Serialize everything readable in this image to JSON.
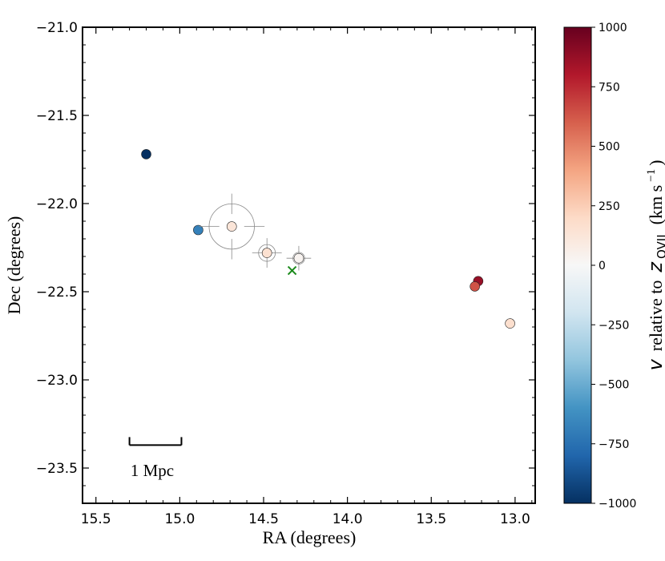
{
  "chart_data": {
    "type": "scatter",
    "xlabel": "RA (degrees)",
    "ylabel": "Dec (degrees)",
    "xlim": [
      15.58,
      12.88
    ],
    "ylim": [
      -23.7,
      -21.0
    ],
    "x_inverted": true,
    "grid": false,
    "x_ticks": [
      "15.5",
      "15.0",
      "14.5",
      "14.0",
      "13.5",
      "13.0"
    ],
    "x_tick_values": [
      15.5,
      15.0,
      14.5,
      14.0,
      13.5,
      13.0
    ],
    "y_ticks": [
      "−21.0",
      "−21.5",
      "−22.0",
      "−22.5",
      "−23.0",
      "−23.5"
    ],
    "y_tick_values": [
      -21.0,
      -21.5,
      -22.0,
      -22.5,
      -23.0,
      -23.5
    ],
    "points": [
      {
        "ra": 15.2,
        "dec": -21.72,
        "v": -1000
      },
      {
        "ra": 14.89,
        "dec": -22.15,
        "v": -680
      },
      {
        "ra": 14.69,
        "dec": -22.13,
        "v": 130,
        "circle_deg": 0.135
      },
      {
        "ra": 14.48,
        "dec": -22.28,
        "v": 160,
        "circle_deg": 0.05
      },
      {
        "ra": 14.29,
        "dec": -22.31,
        "v": 30,
        "circle_deg": 0.035
      },
      {
        "ra": 13.22,
        "dec": -22.44,
        "v": 870
      },
      {
        "ra": 13.24,
        "dec": -22.47,
        "v": 640
      },
      {
        "ra": 13.03,
        "dec": -22.68,
        "v": 170
      }
    ],
    "marker_x": {
      "ra": 14.33,
      "dec": -22.38,
      "color": "#1a8a1a"
    },
    "scale_bar": {
      "label": "1 Mpc",
      "ra_start": 15.3,
      "ra_end": 14.99,
      "dec": -23.37
    },
    "colorbar": {
      "label_v": "v",
      "label_rest": "relative to",
      "label_z": "z",
      "label_sub": "OVII",
      "label_units": "(km s",
      "label_exp": "−1",
      "label_close": ")",
      "min": -1000,
      "max": 1000,
      "ticks": [
        "−1000",
        "−750",
        "−500",
        "−250",
        "0",
        "250",
        "500",
        "750",
        "1000"
      ],
      "tick_values": [
        -1000,
        -750,
        -500,
        -250,
        0,
        250,
        500,
        750,
        1000
      ],
      "colormap": "RdBu_r",
      "stops": [
        "#053061",
        "#2166ac",
        "#4393c3",
        "#92c5de",
        "#d1e5f0",
        "#f7f7f7",
        "#fddbc7",
        "#f4a582",
        "#d6604d",
        "#b2182b",
        "#67001f"
      ]
    }
  }
}
